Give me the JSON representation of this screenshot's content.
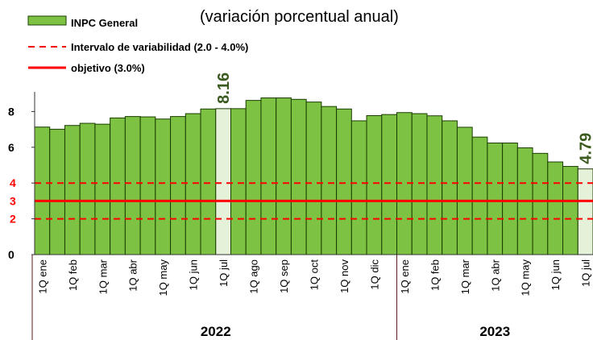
{
  "chart_data": {
    "type": "bar",
    "subtitle": "(variación porcentual anual)",
    "series": [
      {
        "name": "INPC General",
        "color": "#7dc242",
        "highlight_color": "#e5f1d8",
        "values": [
          7.13,
          7.01,
          7.22,
          7.34,
          7.29,
          7.64,
          7.72,
          7.7,
          7.58,
          7.72,
          7.88,
          8.14,
          8.16,
          8.16,
          8.62,
          8.76,
          8.76,
          8.68,
          8.53,
          8.28,
          8.14,
          7.48,
          7.77,
          7.83,
          7.94,
          7.88,
          7.76,
          7.48,
          7.12,
          6.57,
          6.24,
          6.24,
          5.97,
          5.66,
          5.18,
          4.93,
          4.79
        ]
      }
    ],
    "highlight": [
      12,
      36
    ],
    "categories": [
      "1Q ene",
      null,
      "1Q feb",
      null,
      "1Q mar",
      null,
      "1Q abr",
      null,
      "1Q may",
      null,
      "1Q jun",
      null,
      "1Q jul",
      null,
      "1Q ago",
      null,
      "1Q sep",
      null,
      "1Q oct",
      null,
      "1Q nov",
      null,
      "1Q dic",
      null,
      "1Q ene",
      null,
      "1Q feb",
      null,
      "1Q mar",
      null,
      "1Q abr",
      null,
      "1Q may",
      null,
      "1Q jun",
      null,
      "1Q jul"
    ],
    "x_groups": [
      {
        "label": "2022",
        "size": 24
      },
      {
        "label": "2023",
        "size": 13
      }
    ],
    "interval": {
      "name": "Intervalo de variabilidad (2.0 - 4.0%)",
      "color": "#ff0000",
      "values": [
        2,
        4
      ]
    },
    "target": {
      "name": "objetivo (3.0%)",
      "color": "#ff0000",
      "value": 3
    },
    "ylim": [
      0,
      10
    ],
    "yticks": [
      0,
      2,
      4,
      6,
      8
    ]
  }
}
